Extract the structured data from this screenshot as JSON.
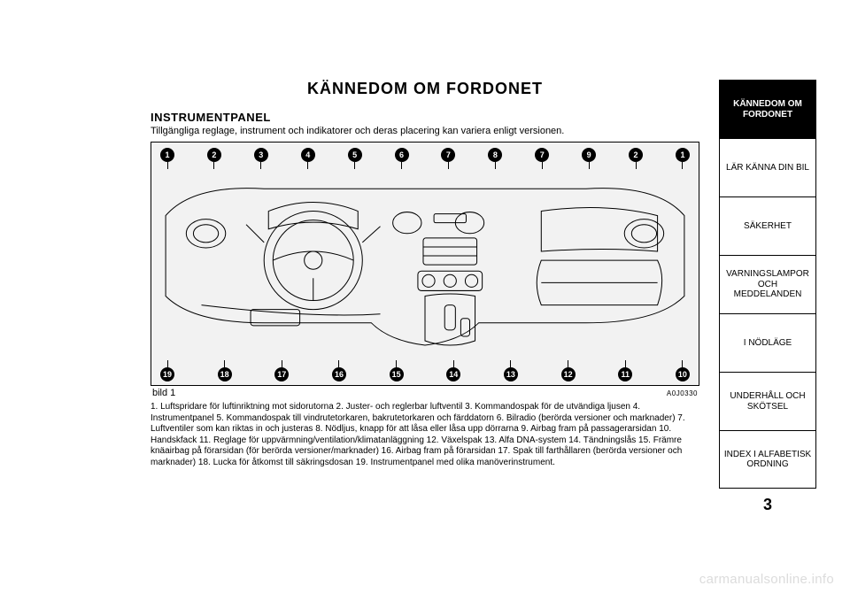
{
  "title": "KÄNNEDOM OM FORDONET",
  "title_fontsize": 18,
  "section": {
    "heading": "INSTRUMENTPANEL",
    "heading_fontsize": 13,
    "subtitle": "Tillgängliga reglage, instrument och indikatorer och deras placering kan variera enligt versionen.",
    "subtitle_fontsize": 11
  },
  "figure": {
    "callouts_top": [
      "1",
      "2",
      "3",
      "4",
      "5",
      "6",
      "7",
      "8",
      "7",
      "9",
      "2",
      "1"
    ],
    "callouts_bottom": [
      "19",
      "18",
      "17",
      "16",
      "15",
      "14",
      "13",
      "12",
      "11",
      "10"
    ],
    "caption": "bild 1",
    "code": "A0J0330",
    "background_color": "#f2f2f2",
    "border_color": "#000000",
    "callout_bg": "#000000",
    "callout_fg": "#ffffff",
    "diagram": {
      "type": "line-illustration",
      "stroke": "#000000",
      "stroke_width": 1,
      "aspect_w": 600,
      "aspect_h": 230
    }
  },
  "body": {
    "text": "1. Luftspridare för luftinriktning mot sidorutorna 2. Juster- och reglerbar luftventil 3. Kommandospak för de utvändiga ljusen 4. Instrumentpanel 5. Kommandospak till vindrutetorkaren, bakrutetorkaren och färddatorn 6. Bilradio (berörda versioner och marknader) 7. Luftventiler som kan riktas in och justeras 8. Nödljus, knapp för att låsa eller låsa upp dörrarna 9. Airbag fram på passagerarsidan 10. Handskfack 11. Reglage för uppvärmning/ventilation/klimatanläggning 12. Växelspak 13. Alfa DNA-system 14. Tändningslås 15. Främre knäairbag på förarsidan (för berörda versioner/marknader) 16. Airbag fram på förarsidan 17. Spak till farthållaren (berörda versioner och marknader) 18. Lucka för åtkomst till säkringsdosan 19. Instrumentpanel med olika manöverinstrument.",
    "fontsize": 10
  },
  "tabs": [
    {
      "label": "KÄNNEDOM OM FORDONET",
      "active": true
    },
    {
      "label": "LÄR KÄNNA DIN BIL",
      "active": false
    },
    {
      "label": "SÄKERHET",
      "active": false
    },
    {
      "label": "VARNINGSLAMPOR OCH MEDDELANDEN",
      "active": false
    },
    {
      "label": "I NÖDLÄGE",
      "active": false
    },
    {
      "label": "UNDERHÅLL OCH SKÖTSEL",
      "active": false
    },
    {
      "label": "INDEX I ALFABETISK ORDNING",
      "active": false
    }
  ],
  "page_number": "3",
  "watermark": "carmanualsonline.info",
  "colors": {
    "page_bg": "#ffffff",
    "text": "#000000",
    "tab_border": "#000000",
    "tab_active_bg": "#000000",
    "tab_active_fg": "#ffffff",
    "watermark": "#dcdcdc"
  }
}
